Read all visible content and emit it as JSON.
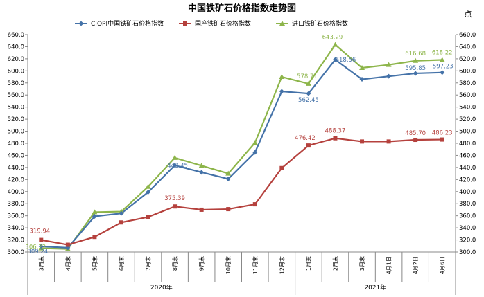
{
  "chart_data": {
    "type": "line",
    "title": "中国铁矿石价格指数走势图",
    "unit": "点",
    "categories": [
      "3月末",
      "4月末",
      "5月末",
      "6月末",
      "7月末",
      "8月末",
      "9月末",
      "10月末",
      "11月末",
      "12月末",
      "1月末",
      "2月末",
      "3月末",
      "4月1日",
      "4月2日",
      "4月6日"
    ],
    "year_groups": [
      {
        "label": "2020年",
        "count": 10
      },
      {
        "label": "2021年",
        "count": 6
      }
    ],
    "ylim": [
      300,
      660
    ],
    "ytick_step": 20,
    "grid": false,
    "legend_position": "top",
    "series": [
      {
        "name": "CIOPI中国铁矿石价格指数",
        "color": "#4472a8",
        "marker": "diamond",
        "values": [
          309.24,
          307,
          359,
          364,
          399,
          443.45,
          432,
          421,
          465,
          566,
          562.45,
          618.56,
          586,
          591,
          595.85,
          597.23
        ],
        "labels": {
          "0": "309.24",
          "5": "443.45",
          "10": "562.45",
          "11": "618.56",
          "14": "595.85",
          "15": "597.23"
        }
      },
      {
        "name": "国产铁矿石价格指数",
        "color": "#b5413d",
        "marker": "square",
        "values": [
          319.94,
          312,
          325,
          349,
          358,
          375.39,
          370,
          371,
          379,
          439,
          476.42,
          488.37,
          483,
          483,
          485.7,
          486.23
        ],
        "labels": {
          "0": "319.94",
          "5": "375.39",
          "10": "476.42",
          "11": "488.37",
          "14": "485.70",
          "15": "486.23"
        }
      },
      {
        "name": "进口铁矿石价格指数",
        "color": "#8db54a",
        "marker": "triangle",
        "values": [
          306.22,
          305,
          366,
          367,
          408,
          456,
          443,
          430,
          481,
          590,
          578.71,
          643.29,
          605,
          610,
          616.68,
          618.22
        ],
        "labels": {
          "0": "306.22",
          "10": "578.71",
          "11": "643.29",
          "14": "616.68",
          "15": "618.22"
        }
      }
    ]
  }
}
